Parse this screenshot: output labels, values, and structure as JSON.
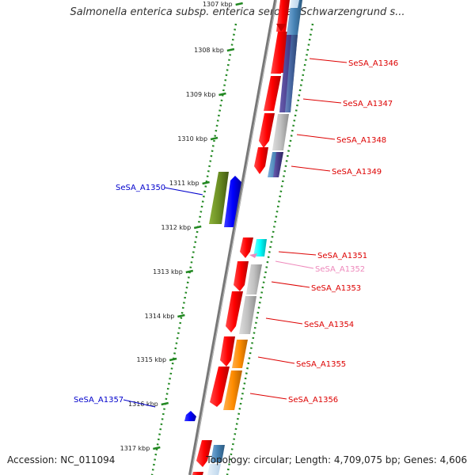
{
  "title": "Salmonella enterica subsp. enterica serovar Schwarzengrund s...",
  "ticks": [
    "1307 kbp",
    "1308 kbp",
    "1309 kbp",
    "1310 kbp",
    "1311 kbp",
    "1312 kbp",
    "1313 kbp",
    "1314 kbp",
    "1315 kbp",
    "1316 kbp",
    "1317 kbp"
  ],
  "gene_labels": [
    {
      "name": "SeSA_A1346",
      "color": "#dd0000"
    },
    {
      "name": "SeSA_A1347",
      "color": "#dd0000"
    },
    {
      "name": "SeSA_A1348",
      "color": "#dd0000"
    },
    {
      "name": "SeSA_A1349",
      "color": "#dd0000"
    },
    {
      "name": "SeSA_A1350",
      "color": "#0000cc"
    },
    {
      "name": "SeSA_A1351",
      "color": "#dd0000"
    },
    {
      "name": "SeSA_A1352",
      "color": "#ee88bb"
    },
    {
      "name": "SeSA_A1353",
      "color": "#dd0000"
    },
    {
      "name": "SeSA_A1354",
      "color": "#dd0000"
    },
    {
      "name": "SeSA_A1355",
      "color": "#dd0000"
    },
    {
      "name": "SeSA_A1356",
      "color": "#dd0000"
    },
    {
      "name": "SeSA_A1357",
      "color": "#0000cc"
    }
  ],
  "footer": {
    "accession": "Accession: NC_011094",
    "topology": "Topology: circular; Length: 4,709,075 bp; Genes: 4,606"
  },
  "colors": {
    "backbone": "#777777",
    "tick": "#228822",
    "cds_forward": "#ff0000",
    "cds_reverse": "#0000ff",
    "olive": "#6b8e23",
    "cyan": "#00ffff",
    "gray": "#bbbbbb",
    "orange": "#ff8c00",
    "steelblue": "#4682b4",
    "darkslate": "#483d8b"
  }
}
